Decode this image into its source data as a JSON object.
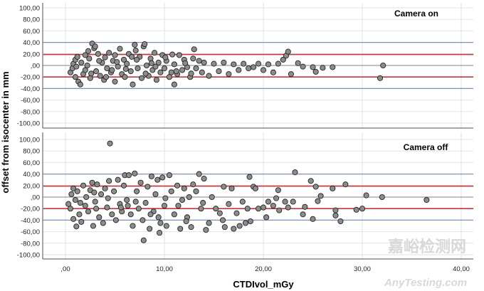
{
  "chart_data": {
    "type": "scatter",
    "xlabel": "CTDIvol_mGy",
    "ylabel": "offset from isocenter in mm",
    "xlim": [
      -2.2,
      41
    ],
    "x_ticks": [
      0,
      10,
      20,
      30,
      40
    ],
    "x_tick_labels": [
      ",00",
      "10,00",
      "20,00",
      "30,00",
      "40,00"
    ],
    "ylim": [
      -100,
      100
    ],
    "y_ticks": [
      100,
      80,
      60,
      40,
      20,
      0,
      -20,
      -40,
      -60,
      -80,
      -100
    ],
    "y_tick_labels": [
      "100,00",
      "80,00",
      "60,00",
      "40,00",
      "20,00",
      ",00",
      "-20,00",
      "-40,00",
      "-60,00",
      "-80,00",
      "-100,00"
    ],
    "grid": true,
    "colors": {
      "point": "#8c8c8c",
      "point_edge": "#222222",
      "limit_outer": "#7f93b8",
      "limit_inner": "#c0393f",
      "zero": "#9a9a9a",
      "grid": "#e2e2e2"
    },
    "reference_lines": [
      {
        "y": 40,
        "kind": "outer"
      },
      {
        "y": 19,
        "kind": "inner"
      },
      {
        "y": 0,
        "kind": "zero"
      },
      {
        "y": -20,
        "kind": "inner"
      },
      {
        "y": -40,
        "kind": "outer"
      }
    ],
    "panels": [
      {
        "label": "Camera on",
        "points": [
          [
            0.5,
            -12
          ],
          [
            0.7,
            -5
          ],
          [
            0.8,
            3
          ],
          [
            1,
            10
          ],
          [
            1,
            -20
          ],
          [
            1.2,
            15
          ],
          [
            1.3,
            -28
          ],
          [
            1.5,
            -33
          ],
          [
            1.6,
            5
          ],
          [
            1.8,
            -15
          ],
          [
            2,
            18
          ],
          [
            2,
            -8
          ],
          [
            2.2,
            0
          ],
          [
            2.4,
            12
          ],
          [
            2.5,
            -22
          ],
          [
            2.7,
            38
          ],
          [
            2.9,
            30
          ],
          [
            3,
            33
          ],
          [
            3.1,
            -10
          ],
          [
            3.3,
            20
          ],
          [
            3.5,
            -18
          ],
          [
            3.7,
            5
          ],
          [
            3.9,
            -25
          ],
          [
            4,
            14
          ],
          [
            4.2,
            -5
          ],
          [
            4.4,
            22
          ],
          [
            4.6,
            -12
          ],
          [
            4.8,
            8
          ],
          [
            5,
            -28
          ],
          [
            5,
            18
          ],
          [
            5.3,
            -2
          ],
          [
            5.5,
            29
          ],
          [
            5.7,
            -15
          ],
          [
            5.9,
            10
          ],
          [
            6,
            -20
          ],
          [
            6.2,
            3
          ],
          [
            6.4,
            20
          ],
          [
            6.6,
            -10
          ],
          [
            6.8,
            -33
          ],
          [
            7,
            36
          ],
          [
            7.1,
            26
          ],
          [
            7.3,
            -5
          ],
          [
            7.5,
            15
          ],
          [
            7.7,
            -22
          ],
          [
            7.9,
            33
          ],
          [
            8,
            37
          ],
          [
            8.2,
            0
          ],
          [
            8.4,
            -18
          ],
          [
            8.6,
            12
          ],
          [
            8.8,
            -8
          ],
          [
            9,
            22
          ],
          [
            9.2,
            -25
          ],
          [
            9.4,
            5
          ],
          [
            9.6,
            -12
          ],
          [
            9.8,
            18
          ],
          [
            10,
            -5
          ],
          [
            10.2,
            8
          ],
          [
            10.5,
            -20
          ],
          [
            10.8,
            19
          ],
          [
            11,
            -33
          ],
          [
            11,
            2
          ],
          [
            11.3,
            -15
          ],
          [
            11.5,
            18
          ],
          [
            11.8,
            -8
          ],
          [
            12,
            10
          ],
          [
            12.3,
            -3
          ],
          [
            12.6,
            -20
          ],
          [
            12.9,
            12
          ],
          [
            13,
            28
          ],
          [
            13.2,
            -5
          ],
          [
            13.5,
            8
          ],
          [
            13.8,
            -12
          ],
          [
            14,
            5
          ],
          [
            14.5,
            -18
          ],
          [
            15,
            3
          ],
          [
            15.5,
            -10
          ],
          [
            16,
            5
          ],
          [
            16.5,
            -15
          ],
          [
            17,
            2
          ],
          [
            17.5,
            -8
          ],
          [
            18,
            3
          ],
          [
            18.5,
            -5
          ],
          [
            19,
            -3
          ],
          [
            19.5,
            3
          ],
          [
            20,
            -8
          ],
          [
            20.5,
            2
          ],
          [
            21,
            -12
          ],
          [
            21.5,
            3
          ],
          [
            22,
            10
          ],
          [
            22.3,
            17
          ],
          [
            22.5,
            24
          ],
          [
            22.8,
            -15
          ],
          [
            23.5,
            4
          ],
          [
            24,
            -2
          ],
          [
            25,
            -3
          ],
          [
            25.3,
            -11
          ],
          [
            26,
            -4
          ],
          [
            27,
            -3
          ],
          [
            31.8,
            -22
          ],
          [
            32.1,
            0
          ],
          [
            1.1,
            -2
          ],
          [
            2.6,
            -14
          ],
          [
            3.4,
            8
          ],
          [
            4.1,
            -20
          ],
          [
            5.2,
            6
          ],
          [
            6.1,
            -6
          ],
          [
            7.2,
            10
          ],
          [
            8.1,
            -14
          ],
          [
            9.1,
            -2
          ],
          [
            10.1,
            14
          ],
          [
            11.2,
            -10
          ],
          [
            12.1,
            4
          ],
          [
            2.3,
            25
          ],
          [
            4.7,
            -8
          ],
          [
            6.7,
            15
          ],
          [
            8.7,
            4
          ],
          [
            10.7,
            -12
          ],
          [
            12.7,
            -14
          ]
        ]
      },
      {
        "label": "Camera off",
        "points": [
          [
            0.3,
            -12
          ],
          [
            0.5,
            -20
          ],
          [
            0.6,
            5
          ],
          [
            0.8,
            15
          ],
          [
            0.8,
            -38
          ],
          [
            1,
            -5
          ],
          [
            1.1,
            -51
          ],
          [
            1.2,
            10
          ],
          [
            1.4,
            -30
          ],
          [
            1.6,
            -43
          ],
          [
            1.8,
            20
          ],
          [
            2,
            -15
          ],
          [
            2.1,
            0
          ],
          [
            2.3,
            -25
          ],
          [
            2.5,
            12
          ],
          [
            2.7,
            25
          ],
          [
            2.8,
            -50
          ],
          [
            3,
            -8
          ],
          [
            3.2,
            22
          ],
          [
            3.4,
            -35
          ],
          [
            3.6,
            5
          ],
          [
            3.8,
            -45
          ],
          [
            4,
            15
          ],
          [
            4.2,
            -18
          ],
          [
            4.4,
            28
          ],
          [
            4.5,
            93
          ],
          [
            4.7,
            -30
          ],
          [
            4.9,
            10
          ],
          [
            5.1,
            -40
          ],
          [
            5.3,
            30
          ],
          [
            5.5,
            -12
          ],
          [
            5.7,
            -25
          ],
          [
            5.9,
            20
          ],
          [
            6,
            38
          ],
          [
            6.2,
            -5
          ],
          [
            6.4,
            38
          ],
          [
            6.6,
            -30
          ],
          [
            6.8,
            -50
          ],
          [
            7,
            41
          ],
          [
            7.2,
            10
          ],
          [
            7.4,
            -20
          ],
          [
            7.6,
            25
          ],
          [
            7.8,
            -40
          ],
          [
            7.9,
            -75
          ],
          [
            8.1,
            -10
          ],
          [
            8.3,
            18
          ],
          [
            8.5,
            -55
          ],
          [
            8.7,
            36
          ],
          [
            8.9,
            -25
          ],
          [
            9.1,
            5
          ],
          [
            9.3,
            30
          ],
          [
            9.5,
            -62
          ],
          [
            9.6,
            -45
          ],
          [
            9.8,
            34
          ],
          [
            10,
            -15
          ],
          [
            10.2,
            -50
          ],
          [
            10.5,
            38
          ],
          [
            10.7,
            10
          ],
          [
            11,
            -30
          ],
          [
            11.3,
            20
          ],
          [
            11.6,
            -55
          ],
          [
            11.8,
            -5
          ],
          [
            12,
            15
          ],
          [
            12.3,
            -35
          ],
          [
            12.7,
            -52
          ],
          [
            12.9,
            22
          ],
          [
            13.2,
            10
          ],
          [
            13.5,
            40
          ],
          [
            13.7,
            -20
          ],
          [
            14,
            32
          ],
          [
            14.2,
            -57
          ],
          [
            14.5,
            -45
          ],
          [
            14.8,
            0
          ],
          [
            15.2,
            -20
          ],
          [
            15.6,
            -28
          ],
          [
            15.9,
            -40
          ],
          [
            16,
            18
          ],
          [
            16.1,
            -52
          ],
          [
            16.5,
            -12
          ],
          [
            16.8,
            15
          ],
          [
            17,
            -55
          ],
          [
            17.3,
            -28
          ],
          [
            17.6,
            -50
          ],
          [
            17.9,
            -8
          ],
          [
            18.2,
            -45
          ],
          [
            18.4,
            -20
          ],
          [
            18.6,
            35
          ],
          [
            18.7,
            -42
          ],
          [
            19,
            18
          ],
          [
            19.2,
            15
          ],
          [
            19.5,
            -20
          ],
          [
            20,
            -18
          ],
          [
            20.3,
            -35
          ],
          [
            20.5,
            -8
          ],
          [
            21,
            -15
          ],
          [
            21.3,
            -2
          ],
          [
            21.6,
            -23
          ],
          [
            21.5,
            12
          ],
          [
            22.2,
            -8
          ],
          [
            22.5,
            -18
          ],
          [
            23,
            -8
          ],
          [
            23.2,
            43
          ],
          [
            24,
            -30
          ],
          [
            24.2,
            -17
          ],
          [
            24.8,
            28
          ],
          [
            25,
            -38
          ],
          [
            25.3,
            18
          ],
          [
            25.5,
            -7
          ],
          [
            25.8,
            2
          ],
          [
            27,
            15
          ],
          [
            27.3,
            -23
          ],
          [
            27.3,
            -32
          ],
          [
            27.8,
            -42
          ],
          [
            28.3,
            22
          ],
          [
            29.4,
            -22
          ],
          [
            30,
            -20
          ],
          [
            30.4,
            3
          ],
          [
            32,
            0
          ],
          [
            36.5,
            -5
          ],
          [
            1.5,
            -10
          ],
          [
            2.9,
            8
          ],
          [
            4.3,
            -2
          ],
          [
            5.6,
            -18
          ],
          [
            7.1,
            -8
          ],
          [
            8.6,
            -30
          ],
          [
            10.1,
            -2
          ],
          [
            11.4,
            -15
          ],
          [
            12.5,
            0
          ],
          [
            13.9,
            -10
          ],
          [
            3.1,
            -20
          ],
          [
            6.3,
            -15
          ],
          [
            9.4,
            -35
          ],
          [
            12.2,
            -42
          ]
        ]
      }
    ]
  },
  "watermark": {
    "cn": "嘉峪检测网",
    "en": "AnyTesting.com"
  }
}
